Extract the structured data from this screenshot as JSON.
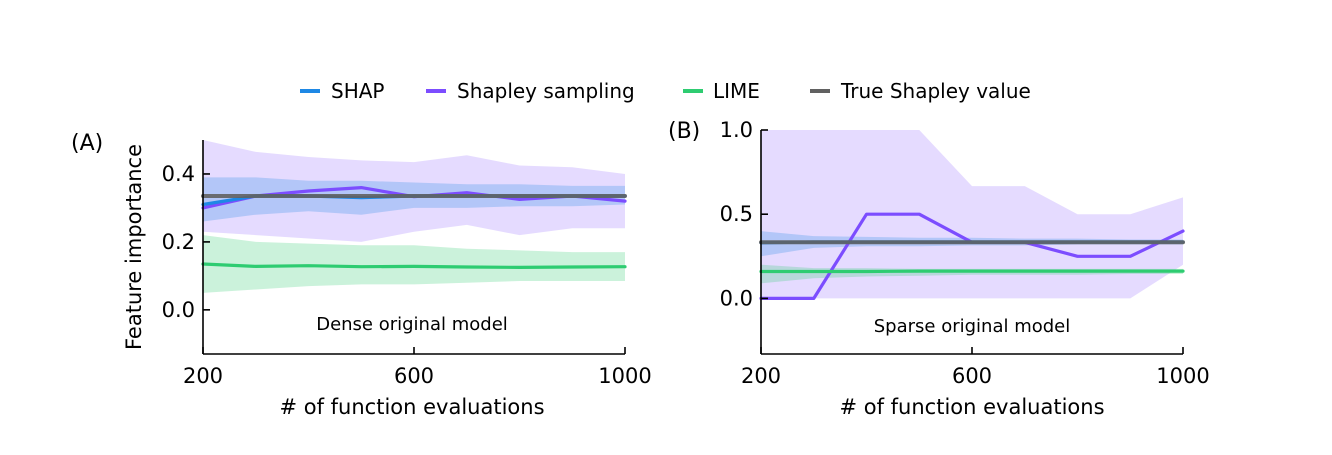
{
  "legend": [
    {
      "name": "SHAP",
      "color": "#1e88e5"
    },
    {
      "name": "Shapley sampling",
      "color": "#7c4dff"
    },
    {
      "name": "LIME",
      "color": "#2ecc71"
    },
    {
      "name": "True Shapley value",
      "color": "#616161"
    }
  ],
  "chart_data": [
    {
      "type": "line",
      "panel_label": "(A)",
      "annotation": "Dense original model",
      "xlabel": "# of function evaluations",
      "ylabel": "Feature importance",
      "xlim": [
        200,
        1000
      ],
      "ylim": [
        -0.13,
        0.5
      ],
      "x_ticks": [
        200,
        600,
        1000
      ],
      "y_ticks": [
        0.0,
        0.2,
        0.4
      ],
      "x_tick_labels": [
        "200",
        "600",
        "1000"
      ],
      "y_tick_labels": [
        "0.0",
        "0.2",
        "0.4"
      ],
      "grid": false,
      "x": [
        200,
        300,
        400,
        500,
        600,
        700,
        800,
        900,
        1000
      ],
      "series": [
        {
          "name": "Shapley sampling",
          "color": "#7c4dff",
          "values": [
            0.3,
            0.335,
            0.35,
            0.36,
            0.333,
            0.345,
            0.325,
            0.335,
            0.32
          ],
          "band_low": [
            0.23,
            0.22,
            0.21,
            0.2,
            0.23,
            0.25,
            0.22,
            0.24,
            0.24
          ],
          "band_high": [
            0.5,
            0.465,
            0.45,
            0.44,
            0.435,
            0.455,
            0.425,
            0.42,
            0.4
          ]
        },
        {
          "name": "SHAP",
          "color": "#1e88e5",
          "values": [
            0.31,
            0.335,
            0.335,
            0.33,
            0.335,
            0.335,
            0.335,
            0.335,
            0.335
          ],
          "band_low": [
            0.26,
            0.28,
            0.29,
            0.28,
            0.3,
            0.3,
            0.305,
            0.305,
            0.31
          ],
          "band_high": [
            0.39,
            0.39,
            0.38,
            0.38,
            0.375,
            0.37,
            0.37,
            0.365,
            0.365
          ]
        },
        {
          "name": "True Shapley value",
          "color": "#616161",
          "values": [
            0.335,
            0.335,
            0.335,
            0.335,
            0.335,
            0.335,
            0.335,
            0.335,
            0.335
          ]
        },
        {
          "name": "LIME",
          "color": "#2ecc71",
          "values": [
            0.135,
            0.128,
            0.13,
            0.127,
            0.128,
            0.126,
            0.125,
            0.126,
            0.127
          ],
          "band_low": [
            0.05,
            0.06,
            0.07,
            0.075,
            0.075,
            0.08,
            0.085,
            0.085,
            0.085
          ],
          "band_high": [
            0.22,
            0.2,
            0.195,
            0.19,
            0.19,
            0.18,
            0.175,
            0.17,
            0.17
          ]
        }
      ]
    },
    {
      "type": "line",
      "panel_label": "(B)",
      "annotation": "Sparse original model",
      "xlabel": "# of function evaluations",
      "ylabel": "",
      "xlim": [
        200,
        1000
      ],
      "ylim": [
        -0.33,
        1.0
      ],
      "x_ticks": [
        200,
        600,
        1000
      ],
      "y_ticks": [
        0.0,
        0.5,
        1.0
      ],
      "x_tick_labels": [
        "200",
        "600",
        "1000"
      ],
      "y_tick_labels": [
        "0.0",
        "0.5",
        "1.0"
      ],
      "grid": false,
      "x": [
        200,
        300,
        400,
        500,
        600,
        700,
        800,
        900,
        1000
      ],
      "series": [
        {
          "name": "Shapley sampling",
          "color": "#7c4dff",
          "values": [
            0.0,
            0.0,
            0.5,
            0.5,
            0.333,
            0.333,
            0.25,
            0.25,
            0.4
          ],
          "band_low": [
            0.0,
            0.0,
            0.0,
            0.0,
            0.0,
            0.0,
            0.0,
            0.0,
            0.2
          ],
          "band_high": [
            1.0,
            1.0,
            1.0,
            1.0,
            0.667,
            0.667,
            0.5,
            0.5,
            0.6
          ]
        },
        {
          "name": "SHAP",
          "color": "#1e88e5",
          "values": [
            0.33,
            0.335,
            0.335,
            0.335,
            0.335,
            0.335,
            0.335,
            0.335,
            0.335
          ],
          "band_low": [
            0.25,
            0.3,
            0.31,
            0.31,
            0.315,
            0.315,
            0.32,
            0.32,
            0.32
          ],
          "band_high": [
            0.4,
            0.37,
            0.365,
            0.36,
            0.36,
            0.355,
            0.355,
            0.35,
            0.35
          ]
        },
        {
          "name": "True Shapley value",
          "color": "#616161",
          "values": [
            0.333,
            0.333,
            0.333,
            0.333,
            0.333,
            0.333,
            0.333,
            0.333,
            0.333
          ]
        },
        {
          "name": "LIME",
          "color": "#2ecc71",
          "values": [
            0.16,
            0.16,
            0.16,
            0.162,
            0.162,
            0.162,
            0.162,
            0.162,
            0.162
          ],
          "band_low": [
            0.09,
            0.12,
            0.13,
            0.135,
            0.14,
            0.14,
            0.14,
            0.145,
            0.145
          ],
          "band_high": [
            0.2,
            0.18,
            0.18,
            0.175,
            0.175,
            0.175,
            0.175,
            0.175,
            0.175
          ]
        }
      ]
    }
  ]
}
